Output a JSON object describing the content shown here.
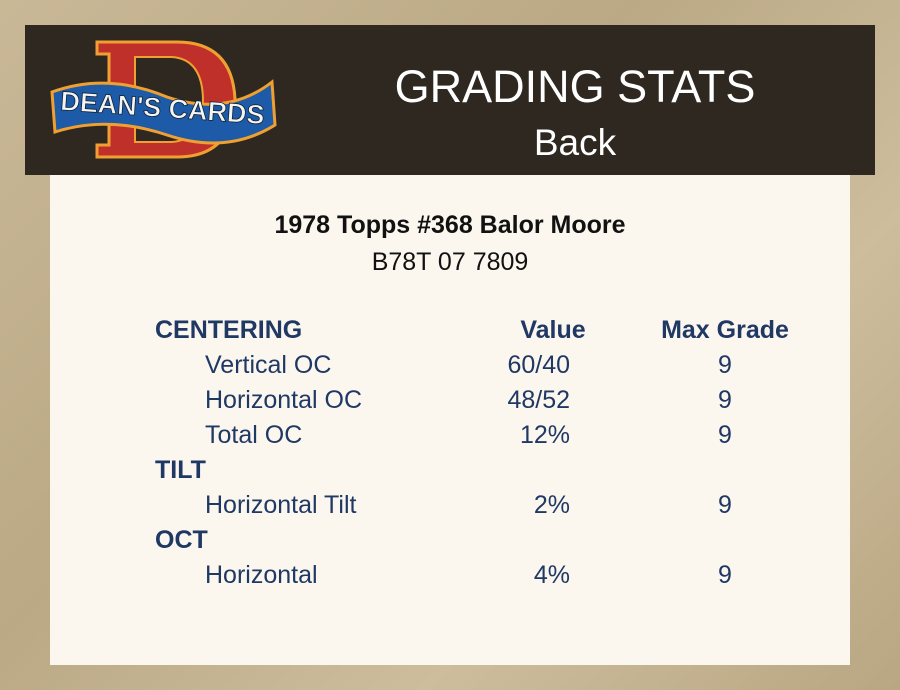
{
  "header": {
    "logo_text": "DEAN'S CARDS",
    "title": "GRADING STATS",
    "subtitle": "Back"
  },
  "card": {
    "title": "1978 Topps #368 Balor Moore",
    "id": "B78T 07 7809"
  },
  "table": {
    "columns": {
      "value": "Value",
      "max_grade": "Max Grade"
    },
    "sections": [
      {
        "name": "CENTERING",
        "rows": [
          {
            "label": "Vertical OC",
            "value": "60/40",
            "max": "9"
          },
          {
            "label": "Horizontal OC",
            "value": "48/52",
            "max": "9"
          },
          {
            "label": "Total OC",
            "value": "12%",
            "max": "9"
          }
        ]
      },
      {
        "name": "TILT",
        "rows": [
          {
            "label": "Horizontal Tilt",
            "value": "2%",
            "max": "9"
          }
        ]
      },
      {
        "name": "OCT",
        "rows": [
          {
            "label": "Horizontal",
            "value": "4%",
            "max": "9"
          }
        ]
      }
    ]
  },
  "colors": {
    "header_bg": "#2e2820",
    "panel_bg": "#fbf6ee",
    "text_navy": "#1f3864",
    "logo_red": "#c0302a",
    "logo_blue": "#1d5aa8",
    "logo_orange": "#f0a030"
  }
}
